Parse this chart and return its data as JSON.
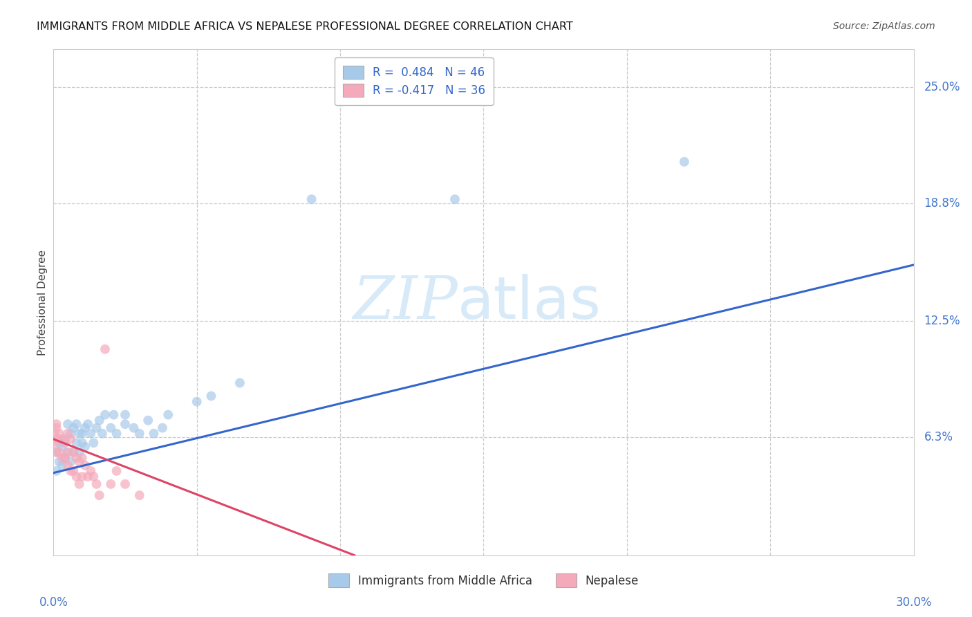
{
  "title": "IMMIGRANTS FROM MIDDLE AFRICA VS NEPALESE PROFESSIONAL DEGREE CORRELATION CHART",
  "source": "Source: ZipAtlas.com",
  "ylabel": "Professional Degree",
  "legend_r1": "R =  0.484   N = 46",
  "legend_r2": "R = -0.417   N = 36",
  "legend_bottom_1": "Immigrants from Middle Africa",
  "legend_bottom_2": "Nepalese",
  "blue_color": "#A8CAEA",
  "blue_line_color": "#3366CC",
  "pink_color": "#F5AABB",
  "pink_line_color": "#DD4466",
  "blue_scatter_x": [
    0.001,
    0.001,
    0.002,
    0.002,
    0.003,
    0.003,
    0.004,
    0.004,
    0.005,
    0.005,
    0.006,
    0.006,
    0.007,
    0.007,
    0.008,
    0.008,
    0.009,
    0.009,
    0.01,
    0.01,
    0.011,
    0.011,
    0.012,
    0.013,
    0.014,
    0.015,
    0.016,
    0.017,
    0.018,
    0.02,
    0.021,
    0.022,
    0.025,
    0.025,
    0.028,
    0.03,
    0.033,
    0.035,
    0.038,
    0.04,
    0.05,
    0.055,
    0.065,
    0.09,
    0.14,
    0.22
  ],
  "blue_scatter_y": [
    0.055,
    0.045,
    0.06,
    0.05,
    0.058,
    0.048,
    0.062,
    0.052,
    0.07,
    0.055,
    0.065,
    0.05,
    0.068,
    0.055,
    0.06,
    0.07,
    0.065,
    0.055,
    0.06,
    0.065,
    0.068,
    0.058,
    0.07,
    0.065,
    0.06,
    0.068,
    0.072,
    0.065,
    0.075,
    0.068,
    0.075,
    0.065,
    0.07,
    0.075,
    0.068,
    0.065,
    0.072,
    0.065,
    0.068,
    0.075,
    0.082,
    0.085,
    0.092,
    0.19,
    0.19,
    0.21
  ],
  "pink_scatter_x": [
    0.0003,
    0.0005,
    0.001,
    0.001,
    0.001,
    0.0015,
    0.002,
    0.002,
    0.003,
    0.003,
    0.004,
    0.004,
    0.005,
    0.005,
    0.005,
    0.006,
    0.006,
    0.007,
    0.007,
    0.008,
    0.008,
    0.009,
    0.009,
    0.01,
    0.01,
    0.011,
    0.012,
    0.013,
    0.014,
    0.015,
    0.016,
    0.018,
    0.02,
    0.022,
    0.025,
    0.03
  ],
  "pink_scatter_y": [
    0.065,
    0.06,
    0.068,
    0.055,
    0.07,
    0.062,
    0.065,
    0.055,
    0.062,
    0.052,
    0.06,
    0.052,
    0.065,
    0.055,
    0.048,
    0.062,
    0.045,
    0.055,
    0.045,
    0.052,
    0.042,
    0.05,
    0.038,
    0.052,
    0.042,
    0.048,
    0.042,
    0.045,
    0.042,
    0.038,
    0.032,
    0.11,
    0.038,
    0.045,
    0.038,
    0.032
  ],
  "blue_line_x0": 0.0,
  "blue_line_y0": 0.044,
  "blue_line_x1": 0.3,
  "blue_line_y1": 0.155,
  "pink_line_x0": 0.0,
  "pink_line_y0": 0.062,
  "pink_line_x1": 0.105,
  "pink_line_y1": 0.0,
  "xlim": [
    0.0,
    0.3
  ],
  "ylim": [
    0.0,
    0.27
  ],
  "ytick_vals": [
    0.063,
    0.125,
    0.188,
    0.25
  ],
  "ytick_labels": [
    "6.3%",
    "12.5%",
    "18.8%",
    "25.0%"
  ],
  "xtick_vals": [
    0.05,
    0.1,
    0.15,
    0.2,
    0.25
  ],
  "watermark_zip": "ZIP",
  "watermark_atlas": "atlas",
  "watermark_color": "#D8EAF8"
}
